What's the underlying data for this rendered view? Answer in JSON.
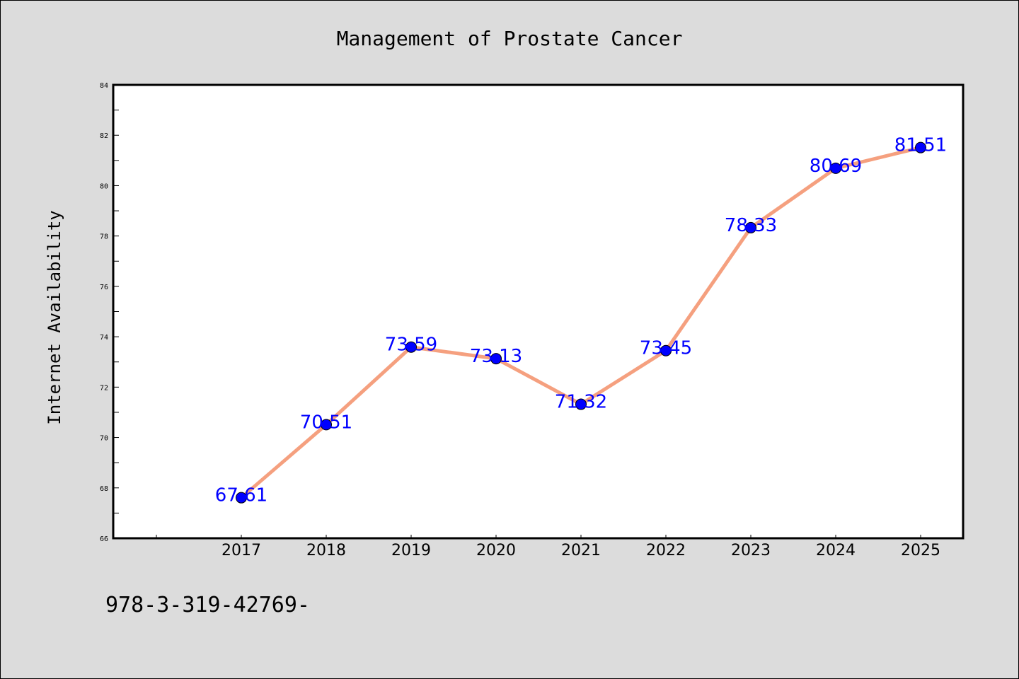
{
  "chart_data": {
    "type": "line",
    "title": "Management of Prostate Cancer",
    "xlabel": "",
    "ylabel": "Internet Availability",
    "x": [
      "2017",
      "2018",
      "2019",
      "2020",
      "2021",
      "2022",
      "2023",
      "2024",
      "2025"
    ],
    "series": [
      {
        "values": [
          67.61,
          70.51,
          73.59,
          73.13,
          71.32,
          73.45,
          78.33,
          80.69,
          81.51
        ]
      }
    ],
    "data_labels": [
      "67.61",
      "70.51",
      "73.59",
      "73.13",
      "71.32",
      "73.45",
      "78.33",
      "80.69",
      "81.51"
    ],
    "ylim": [
      66,
      84
    ],
    "yticks": [
      "66",
      "68",
      "70",
      "72",
      "74",
      "76",
      "78",
      "80",
      "82",
      "84"
    ],
    "grid": false,
    "legend": "none",
    "colors": {
      "line": "#f5a07f",
      "marker": "#0000ff",
      "label": "#0000ff",
      "plot_bg": "#ffffff",
      "figure_bg": "#dcdcdc"
    }
  },
  "footnote": "978-3-319-42769-"
}
